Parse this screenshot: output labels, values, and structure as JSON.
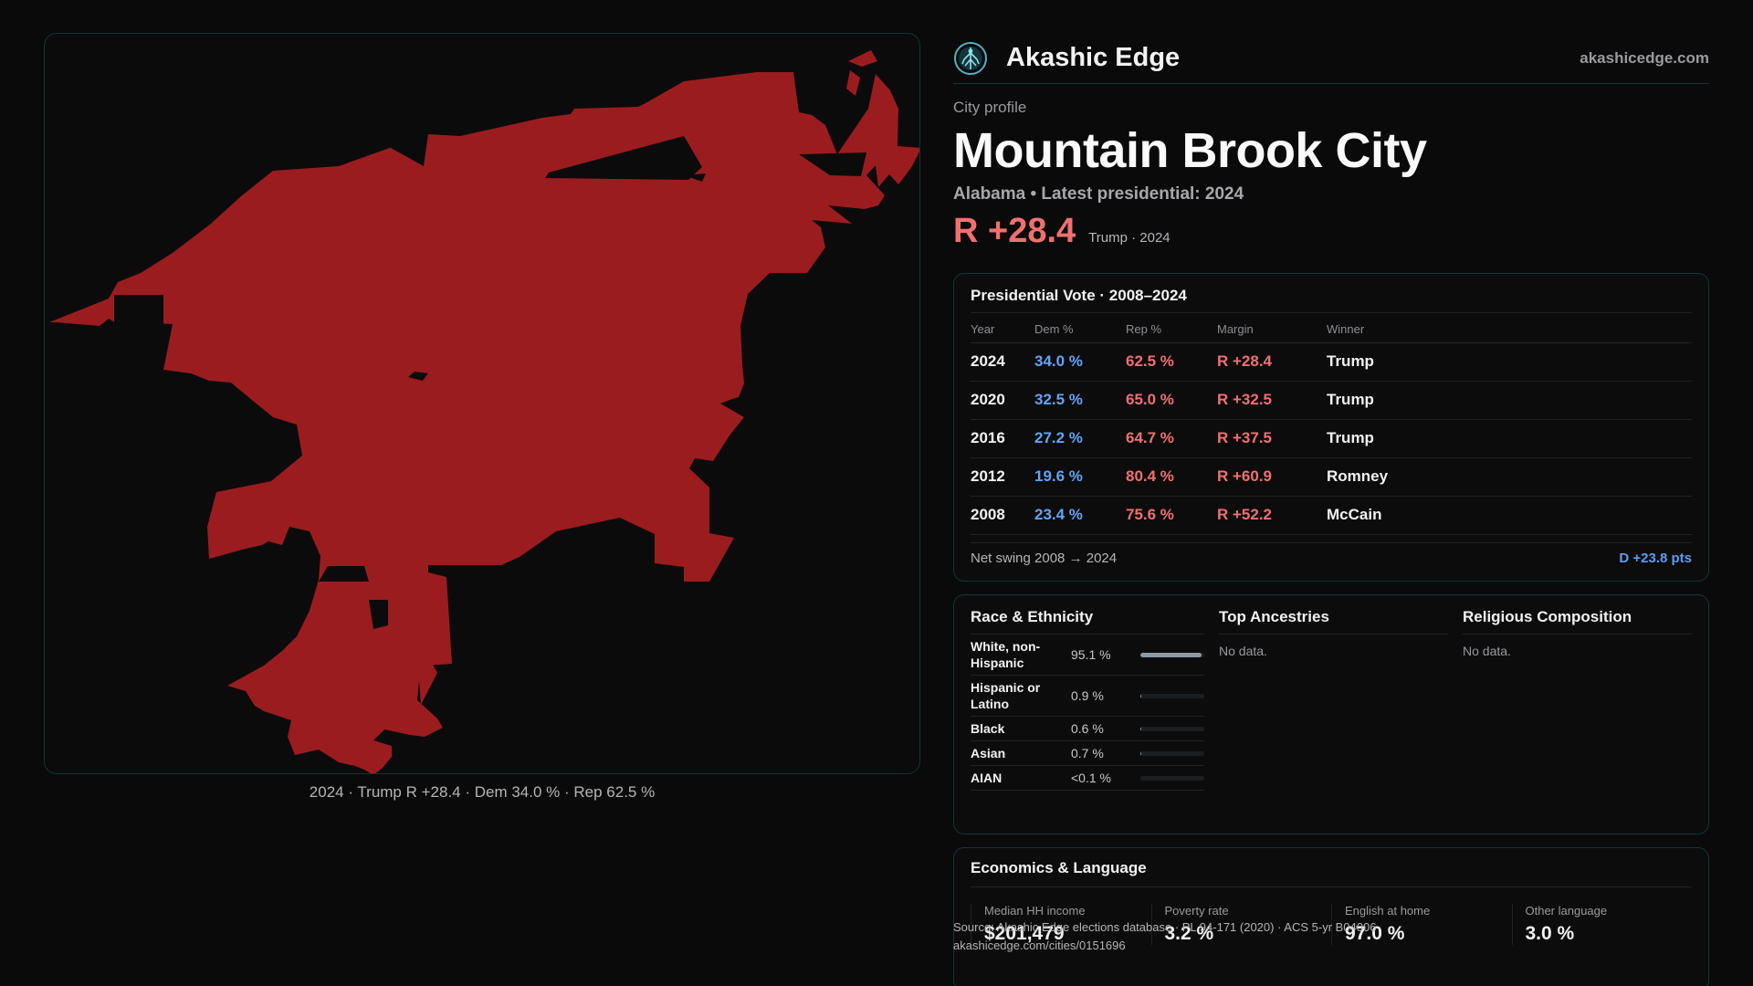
{
  "brand": {
    "name": "Akashic Edge",
    "url": "akashicedge.com",
    "logo_icon": "tree-of-life-icon"
  },
  "header": {
    "eyebrow": "City profile",
    "city": "Mountain Brook City",
    "subtitle": "Alabama • Latest presidential: 2024",
    "margin": "R +28.4",
    "margin_note": "Trump · 2024"
  },
  "map": {
    "fill_color": "#9b1c1f",
    "caption": "2024 · Trump R +28.4 · Dem 34.0 % · Rep 62.5 %"
  },
  "vote": {
    "title": "Presidential Vote · 2008–2024",
    "columns": [
      "Year",
      "Dem %",
      "Rep %",
      "Margin",
      "Winner"
    ],
    "rows": [
      {
        "year": "2024",
        "dem": "34.0 %",
        "rep": "62.5 %",
        "margin": "R +28.4",
        "winner": "Trump"
      },
      {
        "year": "2020",
        "dem": "32.5 %",
        "rep": "65.0 %",
        "margin": "R +32.5",
        "winner": "Trump"
      },
      {
        "year": "2016",
        "dem": "27.2 %",
        "rep": "64.7 %",
        "margin": "R +37.5",
        "winner": "Trump"
      },
      {
        "year": "2012",
        "dem": "19.6 %",
        "rep": "80.4 %",
        "margin": "R +60.9",
        "winner": "Romney"
      },
      {
        "year": "2008",
        "dem": "23.4 %",
        "rep": "75.6 %",
        "margin": "R +52.2",
        "winner": "McCain"
      }
    ],
    "net_label": "Net swing 2008 → 2024",
    "net_value": "D +23.8 pts"
  },
  "race": {
    "title": "Race & Ethnicity",
    "rows": [
      {
        "label": "White, non-Hispanic",
        "pct": "95.1 %",
        "share": 0.951
      },
      {
        "label": "Hispanic or Latino",
        "pct": "0.9 %",
        "share": 0.009
      },
      {
        "label": "Black",
        "pct": "0.6 %",
        "share": 0.006
      },
      {
        "label": "Asian",
        "pct": "0.7 %",
        "share": 0.007
      },
      {
        "label": "AIAN",
        "pct": "<0.1 %",
        "share": 0.0
      }
    ]
  },
  "ancestries": {
    "title": "Top Ancestries",
    "empty": "No data."
  },
  "religion": {
    "title": "Religious Composition",
    "empty": "No data."
  },
  "economics": {
    "title": "Economics & Language",
    "items": [
      {
        "label": "Median HH income",
        "value": "$201,479"
      },
      {
        "label": "Poverty rate",
        "value": "3.2 %"
      },
      {
        "label": "English at home",
        "value": "97.0 %"
      },
      {
        "label": "Other language",
        "value": "3.0 %"
      }
    ]
  },
  "source": {
    "line1": "Source: Akashic Edge elections database · PL 94-171 (2020) · ACS 5-yr B04006",
    "line2": "akashicedge.com/cities/0151696"
  }
}
